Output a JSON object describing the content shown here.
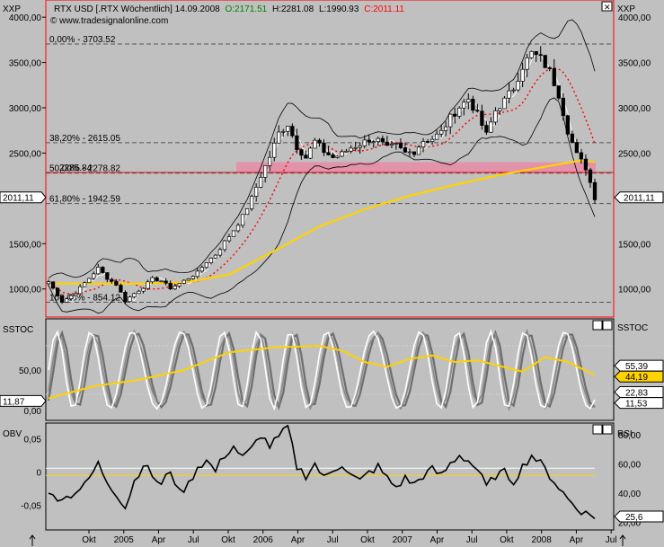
{
  "header": {
    "main_tag": "XXP",
    "main_tag_right": "XXP",
    "title": "RTX USD [.RTX  Wöchentlich] 14.09.2008",
    "open": "O:2171.51",
    "high": "H:2281.08",
    "low": "L:1990.93",
    "close": "C:2011.11",
    "copyright": "© www.tradesignalonline.com"
  },
  "colors": {
    "background": "#c0c0c0",
    "open": "#008000",
    "close": "#ff0000",
    "ma": "#ffd200",
    "frame_red": "#ff0000",
    "zone": "#e88aa6"
  },
  "chart_data": [
    {
      "type": "candlestick",
      "name": "RTX USD weekly",
      "ylim": [
        700,
        4150
      ],
      "y_ticks": [
        "4000,00",
        "3500,00",
        "3000,00",
        "2500,00",
        "1500,00",
        "1000,00"
      ],
      "y_tick_values": [
        4000,
        3500,
        3000,
        2500,
        1500,
        1000
      ],
      "last_value_left": "2011,11",
      "last_value_right": "2011,11",
      "fib_levels": [
        {
          "label": "0,00% - 3703.52",
          "value": 3703.52
        },
        {
          "label": "38,20% - 2615.05",
          "value": 2615.05
        },
        {
          "label": "50,00% - 2278.82",
          "value": 2278.82
        },
        {
          "label": "61,80% - 1942.59",
          "value": 1942.59
        },
        {
          "label": "100,00% - 854.12",
          "value": 854.12
        }
      ],
      "support_line": {
        "label": "2285.84",
        "value": 2285.84
      },
      "close_keypoints": [
        [
          0,
          1080
        ],
        [
          3,
          860
        ],
        [
          6,
          960
        ],
        [
          9,
          1120
        ],
        [
          11,
          1230
        ],
        [
          13,
          1120
        ],
        [
          15,
          1050
        ],
        [
          17,
          870
        ],
        [
          19,
          950
        ],
        [
          21,
          1020
        ],
        [
          23,
          1110
        ],
        [
          25,
          1090
        ],
        [
          27,
          1010
        ],
        [
          29,
          1060
        ],
        [
          31,
          1120
        ],
        [
          33,
          1180
        ],
        [
          35,
          1300
        ],
        [
          37,
          1380
        ],
        [
          39,
          1520
        ],
        [
          41,
          1650
        ],
        [
          43,
          1800
        ],
        [
          45,
          2000
        ],
        [
          47,
          2250
        ],
        [
          49,
          2460
        ],
        [
          51,
          2720
        ],
        [
          53,
          2820
        ],
        [
          55,
          2570
        ],
        [
          57,
          2450
        ],
        [
          59,
          2630
        ],
        [
          61,
          2520
        ],
        [
          63,
          2450
        ],
        [
          65,
          2490
        ],
        [
          67,
          2560
        ],
        [
          69,
          2600
        ],
        [
          71,
          2650
        ],
        [
          73,
          2640
        ],
        [
          75,
          2550
        ],
        [
          77,
          2580
        ],
        [
          79,
          2500
        ],
        [
          81,
          2520
        ],
        [
          83,
          2640
        ],
        [
          85,
          2660
        ],
        [
          87,
          2730
        ],
        [
          89,
          2890
        ],
        [
          91,
          3010
        ],
        [
          93,
          3100
        ],
        [
          95,
          2920
        ],
        [
          97,
          2700
        ],
        [
          99,
          2970
        ],
        [
          101,
          3080
        ],
        [
          103,
          3220
        ],
        [
          105,
          3460
        ],
        [
          107,
          3600
        ],
        [
          109,
          3540
        ],
        [
          111,
          3400
        ],
        [
          113,
          3150
        ],
        [
          115,
          2750
        ],
        [
          117,
          2480
        ],
        [
          119,
          2340
        ],
        [
          121,
          2011.11
        ]
      ],
      "ma_keypoints": [
        [
          0,
          1060
        ],
        [
          20,
          1060
        ],
        [
          30,
          1070
        ],
        [
          40,
          1160
        ],
        [
          50,
          1420
        ],
        [
          60,
          1690
        ],
        [
          70,
          1880
        ],
        [
          80,
          2030
        ],
        [
          90,
          2150
        ],
        [
          100,
          2260
        ],
        [
          110,
          2350
        ],
        [
          118,
          2420
        ],
        [
          121,
          2400
        ]
      ]
    },
    {
      "type": "line",
      "name": "SSTOC",
      "tag": "SSTOC",
      "tag_right": "SSTOC",
      "ylim": [
        -10,
        110
      ],
      "y_ticks": [
        "50,00",
        "0,00"
      ],
      "y_tick_values": [
        50,
        0
      ],
      "left_value": "11,87",
      "right_values": [
        "55,39",
        "44,19",
        "22,83",
        "11,53"
      ],
      "slow_keypoints": [
        [
          0,
          15
        ],
        [
          10,
          30
        ],
        [
          20,
          38
        ],
        [
          30,
          50
        ],
        [
          40,
          72
        ],
        [
          50,
          78
        ],
        [
          60,
          80
        ],
        [
          65,
          74
        ],
        [
          70,
          60
        ],
        [
          75,
          54
        ],
        [
          80,
          64
        ],
        [
          85,
          68
        ],
        [
          90,
          60
        ],
        [
          95,
          62
        ],
        [
          100,
          55
        ],
        [
          105,
          48
        ],
        [
          110,
          66
        ],
        [
          115,
          60
        ],
        [
          121,
          44
        ]
      ]
    },
    {
      "type": "line",
      "name": "OBV",
      "tag": "OBV",
      "tag_right": "RSI",
      "left_ticks": [
        "0,05",
        "0",
        "-0,05"
      ],
      "left_tick_values": [
        0.05,
        0,
        -0.05
      ],
      "right_ticks": [
        "80,00",
        "60,00",
        "40,00",
        "20,00"
      ],
      "right_tick_values": [
        80,
        60,
        40,
        20
      ],
      "rsi_last": "25,6",
      "obv_keypoints": [
        [
          0,
          38
        ],
        [
          4,
          37
        ],
        [
          8,
          45
        ],
        [
          11,
          60
        ],
        [
          13,
          48
        ],
        [
          15,
          40
        ],
        [
          17,
          30
        ],
        [
          19,
          48
        ],
        [
          21,
          60
        ],
        [
          23,
          52
        ],
        [
          25,
          45
        ],
        [
          27,
          56
        ],
        [
          29,
          40
        ],
        [
          31,
          46
        ],
        [
          33,
          58
        ],
        [
          35,
          62
        ],
        [
          37,
          55
        ],
        [
          39,
          66
        ],
        [
          41,
          72
        ],
        [
          43,
          64
        ],
        [
          45,
          70
        ],
        [
          47,
          80
        ],
        [
          49,
          72
        ],
        [
          51,
          78
        ],
        [
          53,
          85
        ],
        [
          55,
          58
        ],
        [
          57,
          52
        ],
        [
          59,
          60
        ],
        [
          61,
          50
        ],
        [
          63,
          56
        ],
        [
          65,
          60
        ],
        [
          67,
          52
        ],
        [
          69,
          48
        ],
        [
          71,
          54
        ],
        [
          73,
          58
        ],
        [
          75,
          50
        ],
        [
          77,
          44
        ],
        [
          79,
          50
        ],
        [
          81,
          46
        ],
        [
          83,
          52
        ],
        [
          85,
          56
        ],
        [
          87,
          52
        ],
        [
          89,
          60
        ],
        [
          91,
          66
        ],
        [
          93,
          62
        ],
        [
          95,
          56
        ],
        [
          97,
          44
        ],
        [
          99,
          52
        ],
        [
          101,
          54
        ],
        [
          103,
          48
        ],
        [
          105,
          58
        ],
        [
          107,
          66
        ],
        [
          109,
          60
        ],
        [
          111,
          52
        ],
        [
          113,
          44
        ],
        [
          115,
          36
        ],
        [
          117,
          30
        ],
        [
          119,
          26
        ],
        [
          121,
          24
        ]
      ]
    }
  ],
  "x_axis": {
    "labels": [
      "Okt",
      "2005",
      "Apr",
      "Jul",
      "Okt",
      "2006",
      "Apr",
      "Jul",
      "Okt",
      "2007",
      "Apr",
      "Jul",
      "Okt",
      "2008",
      "Apr",
      "Jul"
    ],
    "label_weeks": [
      9,
      22,
      35,
      48,
      61,
      74,
      87,
      100,
      113,
      126,
      139,
      152,
      165,
      178,
      191,
      204
    ]
  }
}
